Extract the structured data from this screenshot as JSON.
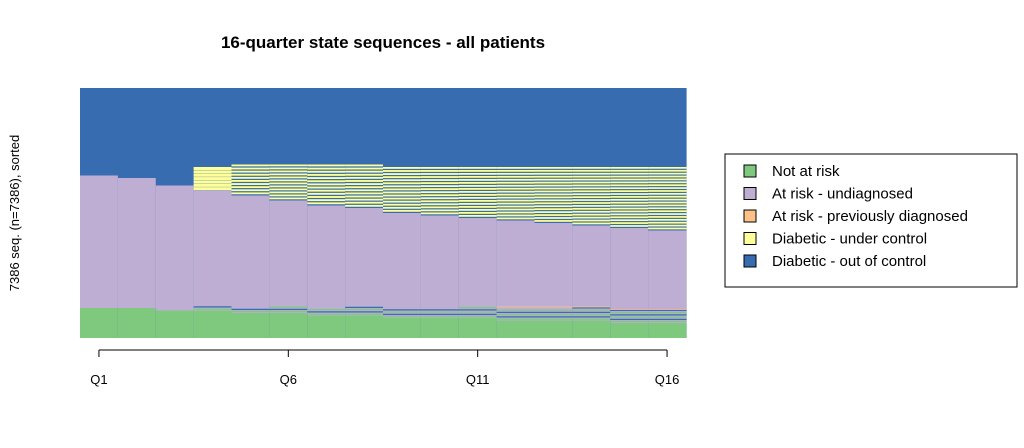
{
  "chart_data": {
    "type": "sequence-index",
    "title": "16-quarter state sequences - all patients",
    "ylabel": "7386 seq. (n=7386), sorted",
    "xlabel": "",
    "n_sequences": 7386,
    "periods": 16,
    "x_ticks": [
      "Q1",
      "Q6",
      "Q11",
      "Q16"
    ],
    "x_tick_positions": [
      1,
      6,
      11,
      16
    ],
    "legend_placement": "right",
    "states": [
      {
        "name": "Not at risk",
        "color": "#7fc97f"
      },
      {
        "name": "At risk - undiagnosed",
        "color": "#beaed4"
      },
      {
        "name": "At risk - previously diagnosed",
        "color": "#fdc086"
      },
      {
        "name": "Diabetic - under control",
        "color": "#ffff99"
      },
      {
        "name": "Diabetic - out of control",
        "color": "#386cb0"
      }
    ],
    "approx_share_by_quarter": {
      "not_at_risk": [
        0.12,
        0.12,
        0.11,
        0.11,
        0.1,
        0.1,
        0.09,
        0.09,
        0.08,
        0.08,
        0.08,
        0.07,
        0.07,
        0.07,
        0.06,
        0.06
      ],
      "at_risk_undiagnosed": [
        0.53,
        0.52,
        0.5,
        0.48,
        0.47,
        0.45,
        0.44,
        0.43,
        0.42,
        0.41,
        0.4,
        0.4,
        0.39,
        0.38,
        0.38,
        0.37
      ],
      "diabetic_under_control": [
        0.0,
        0.0,
        0.0,
        0.07,
        0.1,
        0.12,
        0.14,
        0.15,
        0.16,
        0.17,
        0.18,
        0.19,
        0.2,
        0.21,
        0.22,
        0.23
      ],
      "diabetic_out_of_control": [
        0.35,
        0.36,
        0.39,
        0.34,
        0.33,
        0.33,
        0.33,
        0.33,
        0.34,
        0.34,
        0.34,
        0.34,
        0.34,
        0.34,
        0.34,
        0.34
      ]
    }
  }
}
